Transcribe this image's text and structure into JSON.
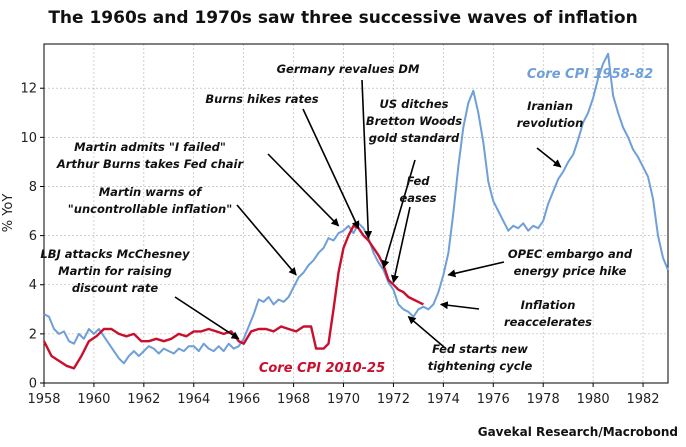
{
  "chart_data": {
    "type": "line",
    "title": "The 1960s and 1970s saw three successive waves of inflation",
    "ylabel": "% YoY",
    "xlim": [
      1958,
      1983
    ],
    "ylim": [
      0,
      13.8
    ],
    "x_ticks": [
      "1958",
      "1960",
      "1962",
      "1964",
      "1966",
      "1968",
      "1970",
      "1972",
      "1974",
      "1976",
      "1978",
      "1980",
      "1982"
    ],
    "y_ticks": [
      "0",
      "2",
      "4",
      "6",
      "8",
      "10",
      "12"
    ],
    "grid": true,
    "source": "Gavekal Research/Macrobond",
    "series": [
      {
        "name": "Core CPI 1958-82",
        "color": "#6f9fd8",
        "points": [
          [
            1958.0,
            2.8
          ],
          [
            1958.2,
            2.7
          ],
          [
            1958.4,
            2.2
          ],
          [
            1958.6,
            2.0
          ],
          [
            1958.8,
            2.1
          ],
          [
            1959.0,
            1.7
          ],
          [
            1959.2,
            1.6
          ],
          [
            1959.4,
            2.0
          ],
          [
            1959.6,
            1.8
          ],
          [
            1959.8,
            2.2
          ],
          [
            1960.0,
            2.0
          ],
          [
            1960.2,
            2.2
          ],
          [
            1960.4,
            1.9
          ],
          [
            1960.6,
            1.6
          ],
          [
            1960.8,
            1.3
          ],
          [
            1961.0,
            1.0
          ],
          [
            1961.2,
            0.8
          ],
          [
            1961.4,
            1.1
          ],
          [
            1961.6,
            1.3
          ],
          [
            1961.8,
            1.1
          ],
          [
            1962.0,
            1.3
          ],
          [
            1962.2,
            1.5
          ],
          [
            1962.4,
            1.4
          ],
          [
            1962.6,
            1.2
          ],
          [
            1962.8,
            1.4
          ],
          [
            1963.0,
            1.3
          ],
          [
            1963.2,
            1.2
          ],
          [
            1963.4,
            1.4
          ],
          [
            1963.6,
            1.3
          ],
          [
            1963.8,
            1.5
          ],
          [
            1964.0,
            1.5
          ],
          [
            1964.2,
            1.3
          ],
          [
            1964.4,
            1.6
          ],
          [
            1964.6,
            1.4
          ],
          [
            1964.8,
            1.3
          ],
          [
            1965.0,
            1.5
          ],
          [
            1965.2,
            1.3
          ],
          [
            1965.4,
            1.6
          ],
          [
            1965.6,
            1.4
          ],
          [
            1965.8,
            1.5
          ],
          [
            1966.0,
            1.8
          ],
          [
            1966.2,
            2.3
          ],
          [
            1966.4,
            2.8
          ],
          [
            1966.6,
            3.4
          ],
          [
            1966.8,
            3.3
          ],
          [
            1967.0,
            3.5
          ],
          [
            1967.2,
            3.2
          ],
          [
            1967.4,
            3.4
          ],
          [
            1967.6,
            3.3
          ],
          [
            1967.8,
            3.5
          ],
          [
            1968.0,
            3.9
          ],
          [
            1968.2,
            4.3
          ],
          [
            1968.4,
            4.5
          ],
          [
            1968.6,
            4.8
          ],
          [
            1968.8,
            5.0
          ],
          [
            1969.0,
            5.3
          ],
          [
            1969.2,
            5.5
          ],
          [
            1969.4,
            5.9
          ],
          [
            1969.6,
            5.8
          ],
          [
            1969.8,
            6.1
          ],
          [
            1970.0,
            6.2
          ],
          [
            1970.2,
            6.4
          ],
          [
            1970.4,
            6.1
          ],
          [
            1970.6,
            6.5
          ],
          [
            1970.8,
            6.3
          ],
          [
            1971.0,
            5.9
          ],
          [
            1971.2,
            5.3
          ],
          [
            1971.4,
            4.9
          ],
          [
            1971.6,
            4.6
          ],
          [
            1971.8,
            4.1
          ],
          [
            1972.0,
            3.8
          ],
          [
            1972.2,
            3.2
          ],
          [
            1972.4,
            3.0
          ],
          [
            1972.6,
            2.9
          ],
          [
            1972.8,
            2.7
          ],
          [
            1973.0,
            3.0
          ],
          [
            1973.2,
            3.1
          ],
          [
            1973.4,
            3.0
          ],
          [
            1973.6,
            3.2
          ],
          [
            1973.8,
            3.7
          ],
          [
            1974.0,
            4.4
          ],
          [
            1974.2,
            5.3
          ],
          [
            1974.4,
            6.9
          ],
          [
            1974.6,
            8.8
          ],
          [
            1974.8,
            10.4
          ],
          [
            1975.0,
            11.4
          ],
          [
            1975.2,
            11.9
          ],
          [
            1975.4,
            11.0
          ],
          [
            1975.6,
            9.8
          ],
          [
            1975.8,
            8.2
          ],
          [
            1976.0,
            7.4
          ],
          [
            1976.2,
            7.0
          ],
          [
            1976.4,
            6.6
          ],
          [
            1976.6,
            6.2
          ],
          [
            1976.8,
            6.4
          ],
          [
            1977.0,
            6.3
          ],
          [
            1977.2,
            6.5
          ],
          [
            1977.4,
            6.2
          ],
          [
            1977.6,
            6.4
          ],
          [
            1977.8,
            6.3
          ],
          [
            1978.0,
            6.6
          ],
          [
            1978.2,
            7.3
          ],
          [
            1978.4,
            7.8
          ],
          [
            1978.6,
            8.3
          ],
          [
            1978.8,
            8.6
          ],
          [
            1979.0,
            9.0
          ],
          [
            1979.2,
            9.3
          ],
          [
            1979.4,
            9.9
          ],
          [
            1979.6,
            10.6
          ],
          [
            1979.8,
            11.0
          ],
          [
            1980.0,
            11.6
          ],
          [
            1980.2,
            12.4
          ],
          [
            1980.4,
            13.0
          ],
          [
            1980.6,
            13.4
          ],
          [
            1980.8,
            11.7
          ],
          [
            1981.0,
            11.0
          ],
          [
            1981.2,
            10.4
          ],
          [
            1981.4,
            10.0
          ],
          [
            1981.6,
            9.5
          ],
          [
            1981.8,
            9.2
          ],
          [
            1982.0,
            8.8
          ],
          [
            1982.2,
            8.4
          ],
          [
            1982.4,
            7.5
          ],
          [
            1982.6,
            6.0
          ],
          [
            1982.8,
            5.1
          ],
          [
            1983.0,
            4.6
          ]
        ]
      },
      {
        "name": "Core CPI 2010-25",
        "color": "#c8102e",
        "points": [
          [
            1958.0,
            1.7
          ],
          [
            1958.3,
            1.1
          ],
          [
            1958.6,
            0.9
          ],
          [
            1958.9,
            0.7
          ],
          [
            1959.2,
            0.6
          ],
          [
            1959.5,
            1.1
          ],
          [
            1959.8,
            1.7
          ],
          [
            1960.1,
            1.9
          ],
          [
            1960.4,
            2.2
          ],
          [
            1960.7,
            2.2
          ],
          [
            1961.0,
            2.0
          ],
          [
            1961.3,
            1.9
          ],
          [
            1961.6,
            2.0
          ],
          [
            1961.9,
            1.7
          ],
          [
            1962.2,
            1.7
          ],
          [
            1962.5,
            1.8
          ],
          [
            1962.8,
            1.7
          ],
          [
            1963.1,
            1.8
          ],
          [
            1963.4,
            2.0
          ],
          [
            1963.7,
            1.9
          ],
          [
            1964.0,
            2.1
          ],
          [
            1964.3,
            2.1
          ],
          [
            1964.6,
            2.2
          ],
          [
            1964.9,
            2.1
          ],
          [
            1965.2,
            2.0
          ],
          [
            1965.5,
            2.1
          ],
          [
            1965.8,
            1.7
          ],
          [
            1966.0,
            1.6
          ],
          [
            1966.3,
            2.1
          ],
          [
            1966.6,
            2.2
          ],
          [
            1966.9,
            2.2
          ],
          [
            1967.2,
            2.1
          ],
          [
            1967.5,
            2.3
          ],
          [
            1967.8,
            2.2
          ],
          [
            1968.1,
            2.1
          ],
          [
            1968.4,
            2.3
          ],
          [
            1968.7,
            2.3
          ],
          [
            1968.9,
            1.4
          ],
          [
            1969.2,
            1.4
          ],
          [
            1969.4,
            1.6
          ],
          [
            1969.6,
            3.0
          ],
          [
            1969.8,
            4.5
          ],
          [
            1970.0,
            5.5
          ],
          [
            1970.2,
            6.0
          ],
          [
            1970.4,
            6.4
          ],
          [
            1970.6,
            6.3
          ],
          [
            1970.8,
            6.0
          ],
          [
            1971.0,
            5.8
          ],
          [
            1971.2,
            5.5
          ],
          [
            1971.4,
            5.2
          ],
          [
            1971.6,
            4.8
          ],
          [
            1971.8,
            4.2
          ],
          [
            1972.0,
            4.0
          ],
          [
            1972.2,
            3.8
          ],
          [
            1972.4,
            3.7
          ],
          [
            1972.6,
            3.5
          ],
          [
            1972.8,
            3.4
          ],
          [
            1973.0,
            3.3
          ],
          [
            1973.2,
            3.2
          ]
        ]
      }
    ],
    "annotations": [
      {
        "lines": [
          "LBJ attacks McChesney",
          "Martin for raising",
          "discount rate"
        ],
        "target": [
          1965.8,
          1.8
        ]
      },
      {
        "lines": [
          "Martin warns of",
          "\"uncontrollable inflation\""
        ],
        "target": [
          1968.1,
          4.4
        ]
      },
      {
        "lines": [
          "Martin admits \"I failed\"",
          "Arthur Burns takes Fed chair"
        ],
        "target": [
          1969.8,
          6.4
        ]
      },
      {
        "lines": [
          "Burns hikes rates"
        ],
        "target": [
          1970.6,
          6.3
        ]
      },
      {
        "lines": [
          "Germany revalues DM"
        ],
        "target": [
          1971.0,
          5.9
        ]
      },
      {
        "lines": [
          "US ditches",
          "Bretton Woods",
          "gold standard"
        ],
        "target": [
          1971.6,
          4.7
        ]
      },
      {
        "lines": [
          "Fed",
          "eases"
        ],
        "target": [
          1972.0,
          4.1
        ]
      },
      {
        "lines": [
          "OPEC embargo and",
          "energy price hike"
        ],
        "target": [
          1974.2,
          4.4
        ]
      },
      {
        "lines": [
          "Inflation",
          "reaccelerates"
        ],
        "target": [
          1973.9,
          3.2
        ]
      },
      {
        "lines": [
          "Fed starts new",
          "tightening cycle"
        ],
        "target": [
          1972.6,
          2.7
        ]
      },
      {
        "lines": [
          "Iranian",
          "revolution"
        ],
        "target": [
          1978.7,
          8.8
        ]
      }
    ]
  }
}
